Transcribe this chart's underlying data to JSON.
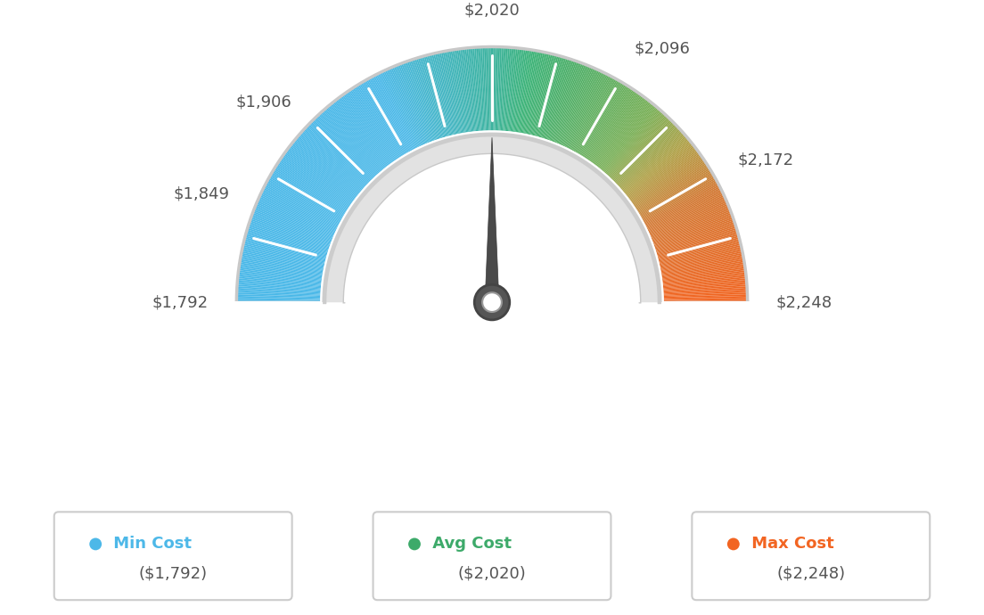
{
  "min_val": 1792,
  "max_val": 2248,
  "avg_val": 2020,
  "needle_val": 2020,
  "label_values": [
    1792,
    1849,
    1906,
    2020,
    2096,
    2172,
    2248
  ],
  "label_texts": [
    "$1,792",
    "$1,849",
    "$1,906",
    "$2,020",
    "$2,096",
    "$2,172",
    "$2,248"
  ],
  "legend": [
    {
      "label": "Min Cost",
      "value": "($1,792)",
      "color": "#4db8e8"
    },
    {
      "label": "Avg Cost",
      "value": "($2,020)",
      "color": "#3daa6a"
    },
    {
      "label": "Max Cost",
      "value": "($2,248)",
      "color": "#f26522"
    }
  ],
  "background_color": "#ffffff",
  "color_stops": [
    [
      0.0,
      [
        74,
        184,
        232
      ]
    ],
    [
      0.35,
      [
        74,
        184,
        232
      ]
    ],
    [
      0.5,
      [
        61,
        179,
        158
      ]
    ],
    [
      0.55,
      [
        61,
        179,
        120
      ]
    ],
    [
      0.6,
      [
        76,
        175,
        105
      ]
    ],
    [
      0.72,
      [
        120,
        175,
        85
      ]
    ],
    [
      0.78,
      [
        175,
        160,
        70
      ]
    ],
    [
      0.85,
      [
        210,
        120,
        50
      ]
    ],
    [
      1.0,
      [
        242,
        101,
        34
      ]
    ]
  ]
}
